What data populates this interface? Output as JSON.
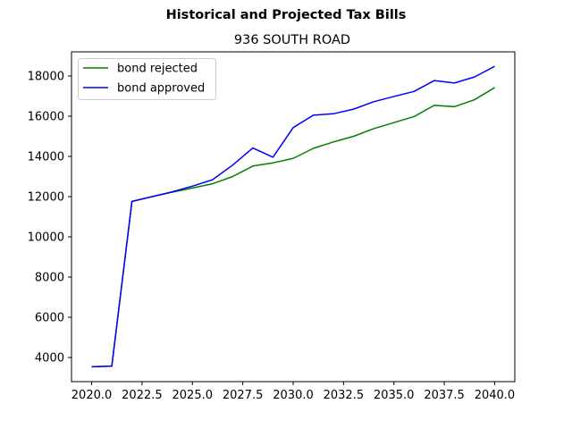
{
  "suptitle": "Historical and Projected Tax Bills",
  "chart_data": {
    "type": "line",
    "title": "936 SOUTH ROAD",
    "xlabel": "",
    "ylabel": "",
    "xlim": [
      2019.0,
      2041.0
    ],
    "ylim": [
      2800,
      19200
    ],
    "x_ticks": [
      2020.0,
      2022.5,
      2025.0,
      2027.5,
      2030.0,
      2032.5,
      2035.0,
      2037.5,
      2040.0
    ],
    "x_tick_labels": [
      "2020.0",
      "2022.5",
      "2025.0",
      "2027.5",
      "2030.0",
      "2032.5",
      "2035.0",
      "2037.5",
      "2040.0"
    ],
    "y_ticks": [
      4000,
      6000,
      8000,
      10000,
      12000,
      14000,
      16000,
      18000
    ],
    "y_tick_labels": [
      "4000",
      "6000",
      "8000",
      "10000",
      "12000",
      "14000",
      "16000",
      "18000"
    ],
    "grid": false,
    "legend_position": "upper-left",
    "x": [
      2020,
      2021,
      2022,
      2023,
      2024,
      2025,
      2026,
      2027,
      2028,
      2029,
      2030,
      2031,
      2032,
      2033,
      2034,
      2035,
      2036,
      2037,
      2038,
      2039,
      2040
    ],
    "series": [
      {
        "name": "bond rejected",
        "color": "#008000",
        "values": [
          3540,
          3570,
          11760,
          12000,
          12220,
          12430,
          12640,
          13000,
          13520,
          13680,
          13900,
          14400,
          14720,
          15000,
          15380,
          15680,
          15980,
          16540,
          16470,
          16820,
          17420
        ]
      },
      {
        "name": "bond approved",
        "color": "#0000ff",
        "values": [
          3540,
          3570,
          11760,
          12000,
          12240,
          12520,
          12840,
          13570,
          14420,
          13960,
          15430,
          16050,
          16120,
          16350,
          16720,
          16980,
          17230,
          17770,
          17650,
          17950,
          18480
        ]
      }
    ]
  }
}
